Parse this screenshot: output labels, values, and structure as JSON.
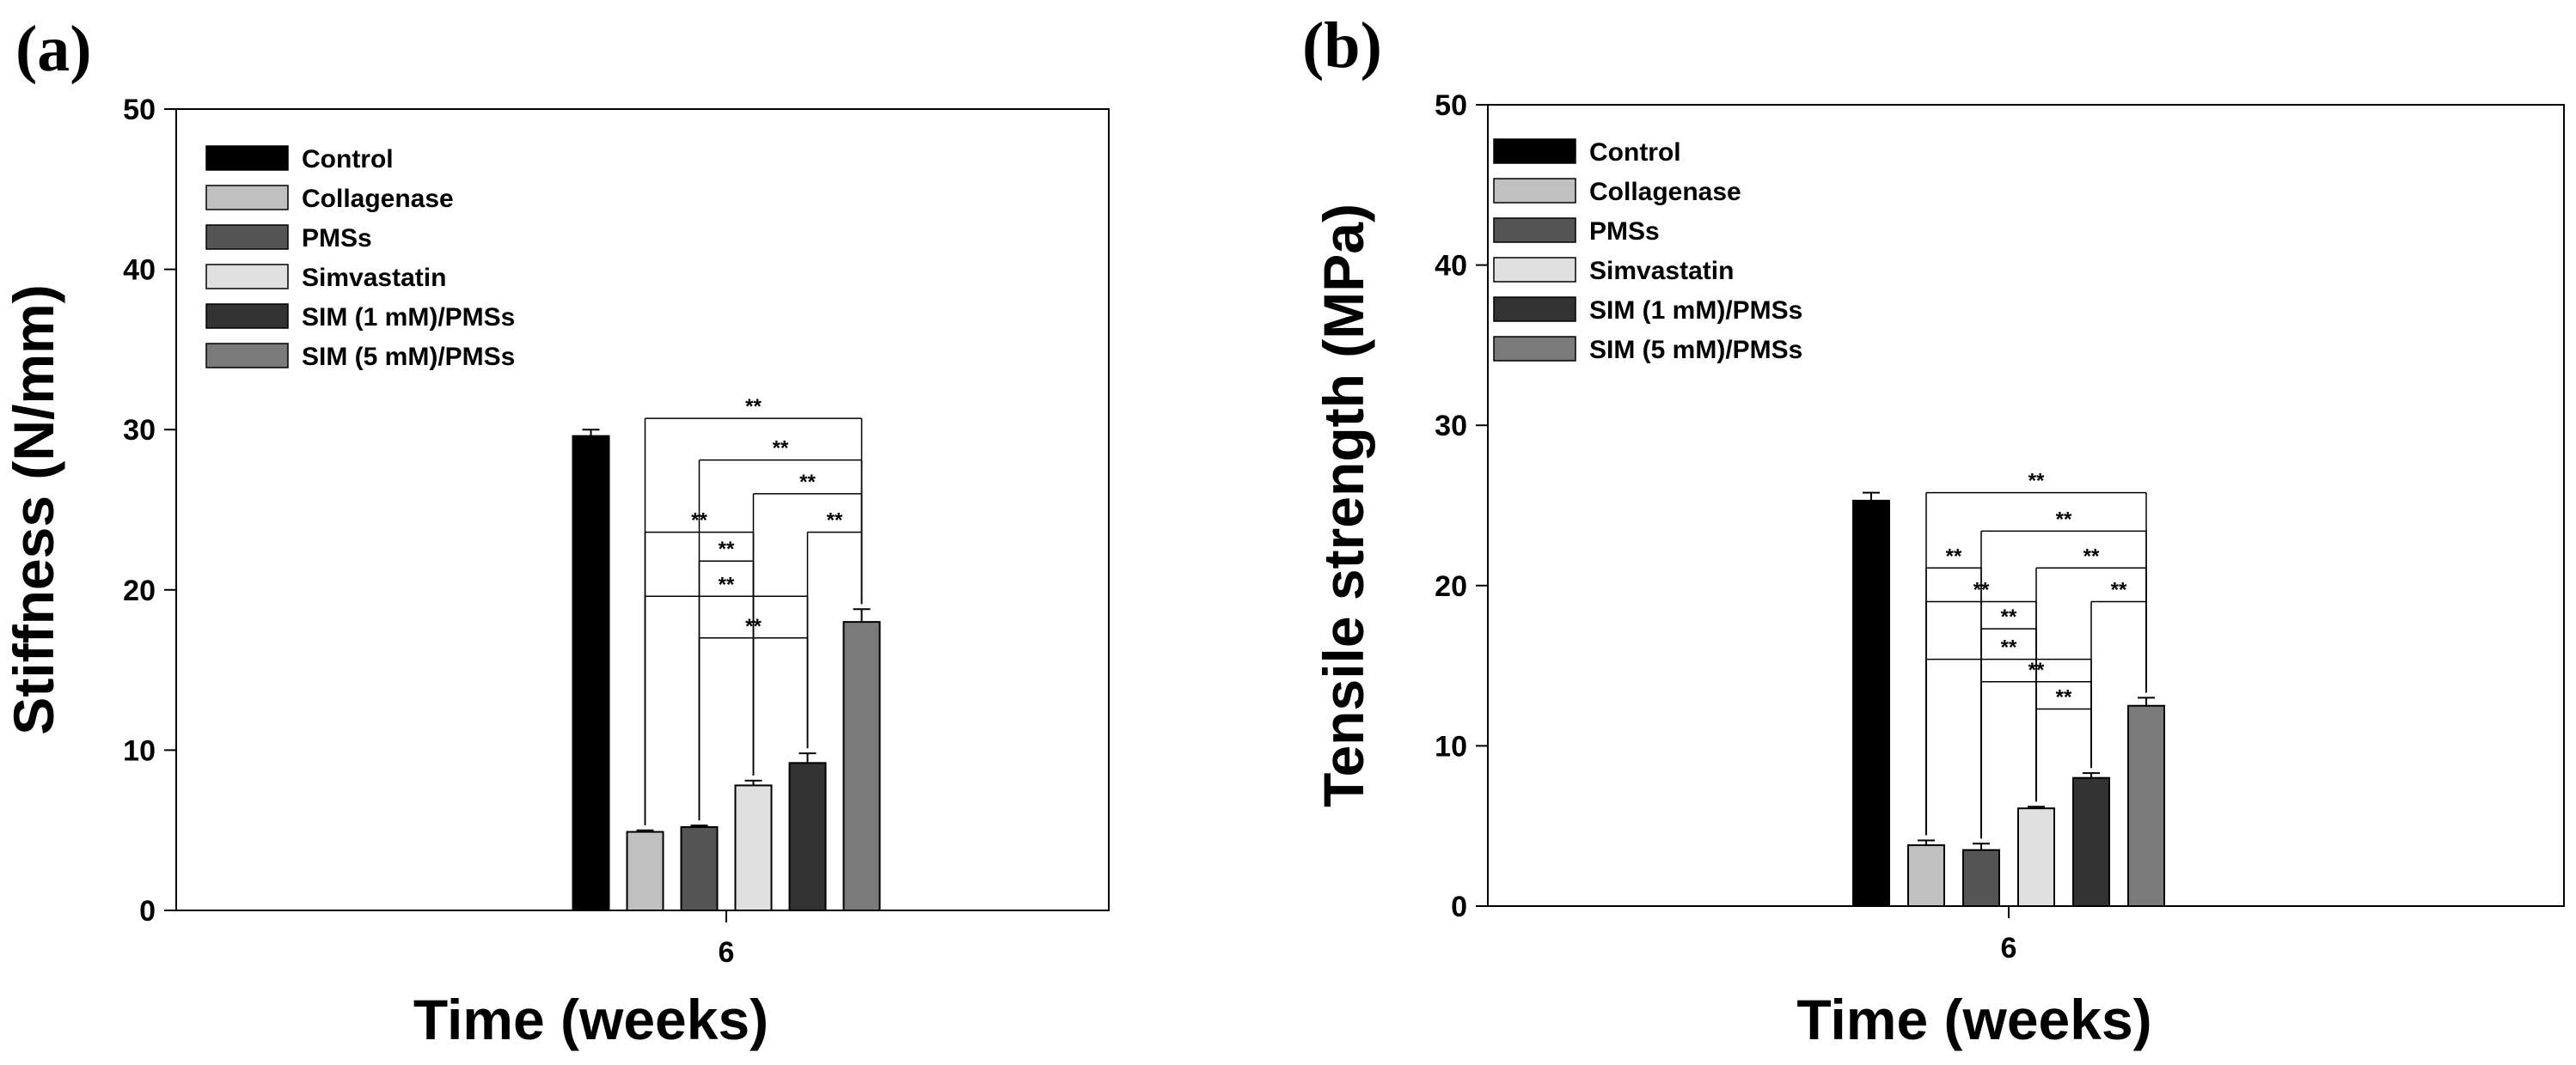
{
  "chart_data": [
    {
      "panel_label": "(a)",
      "type": "bar",
      "categories": [
        "6"
      ],
      "xlabel": "Time (weeks)",
      "ylabel": "Stiffness (N/mm)",
      "ylim": [
        0,
        50
      ],
      "yticks": [
        "0",
        "10",
        "20",
        "30",
        "40",
        "50"
      ],
      "legend_position": "top-left",
      "series": [
        {
          "name": "Control",
          "color": "#000000",
          "values": [
            29.6
          ],
          "errors": [
            0.4
          ]
        },
        {
          "name": "Collagenase",
          "color": "#c0c0c0",
          "values": [
            4.9
          ],
          "errors": [
            0.1
          ]
        },
        {
          "name": "PMSs",
          "color": "#555555",
          "values": [
            5.2
          ],
          "errors": [
            0.1
          ]
        },
        {
          "name": "Simvastatin",
          "color": "#e0e0e0",
          "values": [
            7.8
          ],
          "errors": [
            0.3
          ]
        },
        {
          "name": "SIM (1 mM)/PMSs",
          "color": "#333333",
          "values": [
            9.2
          ],
          "errors": [
            0.6
          ]
        },
        {
          "name": "SIM (5 mM)/PMSs",
          "color": "#7a7a7a",
          "values": [
            18.0
          ],
          "errors": [
            0.8
          ]
        }
      ],
      "significance": [
        {
          "from": "Collagenase",
          "to": "SIM (5 mM)/PMSs",
          "level": 30.7,
          "label": "**"
        },
        {
          "from": "PMSs",
          "to": "SIM (5 mM)/PMSs",
          "level": 28.1,
          "label": "**"
        },
        {
          "from": "Simvastatin",
          "to": "SIM (5 mM)/PMSs",
          "level": 26.0,
          "label": "**"
        },
        {
          "from": "SIM (1 mM)/PMSs",
          "to": "SIM (5 mM)/PMSs",
          "level": 23.6,
          "label": "**"
        },
        {
          "from": "Collagenase",
          "to": "Simvastatin",
          "level": 23.6,
          "label": "**"
        },
        {
          "from": "PMSs",
          "to": "Simvastatin",
          "level": 21.8,
          "label": "**"
        },
        {
          "from": "Collagenase",
          "to": "SIM (1 mM)/PMSs",
          "level": 19.6,
          "label": "**"
        },
        {
          "from": "PMSs",
          "to": "SIM (1 mM)/PMSs",
          "level": 17.0,
          "label": "**"
        }
      ]
    },
    {
      "panel_label": "(b)",
      "type": "bar",
      "categories": [
        "6"
      ],
      "xlabel": "Time (weeks)",
      "ylabel": "Tensile strength (MPa)",
      "ylim": [
        0,
        50
      ],
      "yticks": [
        "0",
        "10",
        "20",
        "30",
        "40",
        "50"
      ],
      "legend_position": "top-left",
      "series": [
        {
          "name": "Control",
          "color": "#000000",
          "values": [
            25.3
          ],
          "errors": [
            0.5
          ]
        },
        {
          "name": "Collagenase",
          "color": "#c0c0c0",
          "values": [
            3.8
          ],
          "errors": [
            0.3
          ]
        },
        {
          "name": "PMSs",
          "color": "#555555",
          "values": [
            3.5
          ],
          "errors": [
            0.4
          ]
        },
        {
          "name": "Simvastatin",
          "color": "#e0e0e0",
          "values": [
            6.1
          ],
          "errors": [
            0.1
          ]
        },
        {
          "name": "SIM (1 mM)/PMSs",
          "color": "#333333",
          "values": [
            8.0
          ],
          "errors": [
            0.3
          ]
        },
        {
          "name": "SIM (5 mM)/PMSs",
          "color": "#7a7a7a",
          "values": [
            12.5
          ],
          "errors": [
            0.5
          ]
        }
      ],
      "significance": [
        {
          "from": "Collagenase",
          "to": "SIM (5 mM)/PMSs",
          "level": 25.8,
          "label": "**"
        },
        {
          "from": "PMSs",
          "to": "SIM (5 mM)/PMSs",
          "level": 23.4,
          "label": "**"
        },
        {
          "from": "Simvastatin",
          "to": "SIM (5 mM)/PMSs",
          "level": 21.1,
          "label": "**"
        },
        {
          "from": "SIM (1 mM)/PMSs",
          "to": "SIM (5 mM)/PMSs",
          "level": 19.0,
          "label": "**"
        },
        {
          "from": "Collagenase",
          "to": "PMSs",
          "level": 21.1,
          "label": "**"
        },
        {
          "from": "Collagenase",
          "to": "Simvastatin",
          "level": 19.0,
          "label": "**"
        },
        {
          "from": "PMSs",
          "to": "Simvastatin",
          "level": 17.3,
          "label": "**"
        },
        {
          "from": "Collagenase",
          "to": "SIM (1 mM)/PMSs",
          "level": 15.4,
          "label": "**"
        },
        {
          "from": "PMSs",
          "to": "SIM (1 mM)/PMSs",
          "level": 14.0,
          "label": "**"
        },
        {
          "from": "Simvastatin",
          "to": "SIM (1 mM)/PMSs",
          "level": 12.3,
          "label": "**"
        }
      ]
    }
  ]
}
